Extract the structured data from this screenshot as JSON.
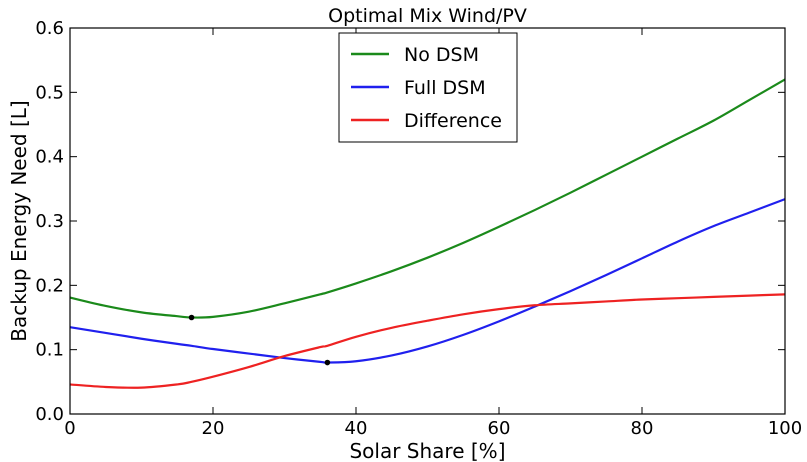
{
  "chart_data": {
    "type": "line",
    "title": "Optimal Mix Wind/PV",
    "xlabel": "Solar Share [%]",
    "ylabel": "Backup Energy Need [L]",
    "xlim": [
      0,
      100
    ],
    "ylim": [
      0.0,
      0.6
    ],
    "xticks": [
      0,
      20,
      40,
      60,
      80,
      100
    ],
    "xtick_labels": [
      "0",
      "20",
      "40",
      "60",
      "80",
      "100"
    ],
    "yticks": [
      0.0,
      0.1,
      0.2,
      0.3,
      0.4,
      0.5,
      0.6
    ],
    "ytick_labels": [
      "0.0",
      "0.1",
      "0.2",
      "0.3",
      "0.4",
      "0.5",
      "0.6"
    ],
    "grid": false,
    "legend_position": "top-center",
    "x": [
      0,
      5,
      10,
      15,
      17,
      20,
      25,
      30,
      35,
      36,
      40,
      45,
      50,
      55,
      60,
      65,
      70,
      75,
      80,
      85,
      90,
      95,
      100
    ],
    "series": [
      {
        "name": "No DSM",
        "color": "#1b8a1b",
        "values": [
          0.181,
          0.168,
          0.158,
          0.152,
          0.15,
          0.151,
          0.159,
          0.172,
          0.186,
          0.189,
          0.203,
          0.222,
          0.243,
          0.266,
          0.291,
          0.317,
          0.344,
          0.372,
          0.4,
          0.428,
          0.456,
          0.488,
          0.52
        ]
      },
      {
        "name": "Full DSM",
        "color": "#2020ee",
        "values": [
          0.135,
          0.126,
          0.117,
          0.109,
          0.106,
          0.101,
          0.094,
          0.087,
          0.081,
          0.08,
          0.082,
          0.091,
          0.105,
          0.123,
          0.144,
          0.167,
          0.191,
          0.216,
          0.242,
          0.268,
          0.292,
          0.313,
          0.334
        ]
      },
      {
        "name": "Difference",
        "color": "#ee2222",
        "values": [
          0.046,
          0.042,
          0.041,
          0.046,
          0.05,
          0.058,
          0.073,
          0.09,
          0.104,
          0.106,
          0.12,
          0.134,
          0.145,
          0.155,
          0.163,
          0.169,
          0.172,
          0.175,
          0.178,
          0.18,
          0.182,
          0.184,
          0.186
        ]
      }
    ],
    "markers": [
      {
        "series": "No DSM",
        "x": 17,
        "y": 0.15
      },
      {
        "series": "Full DSM",
        "x": 36,
        "y": 0.08
      }
    ]
  }
}
